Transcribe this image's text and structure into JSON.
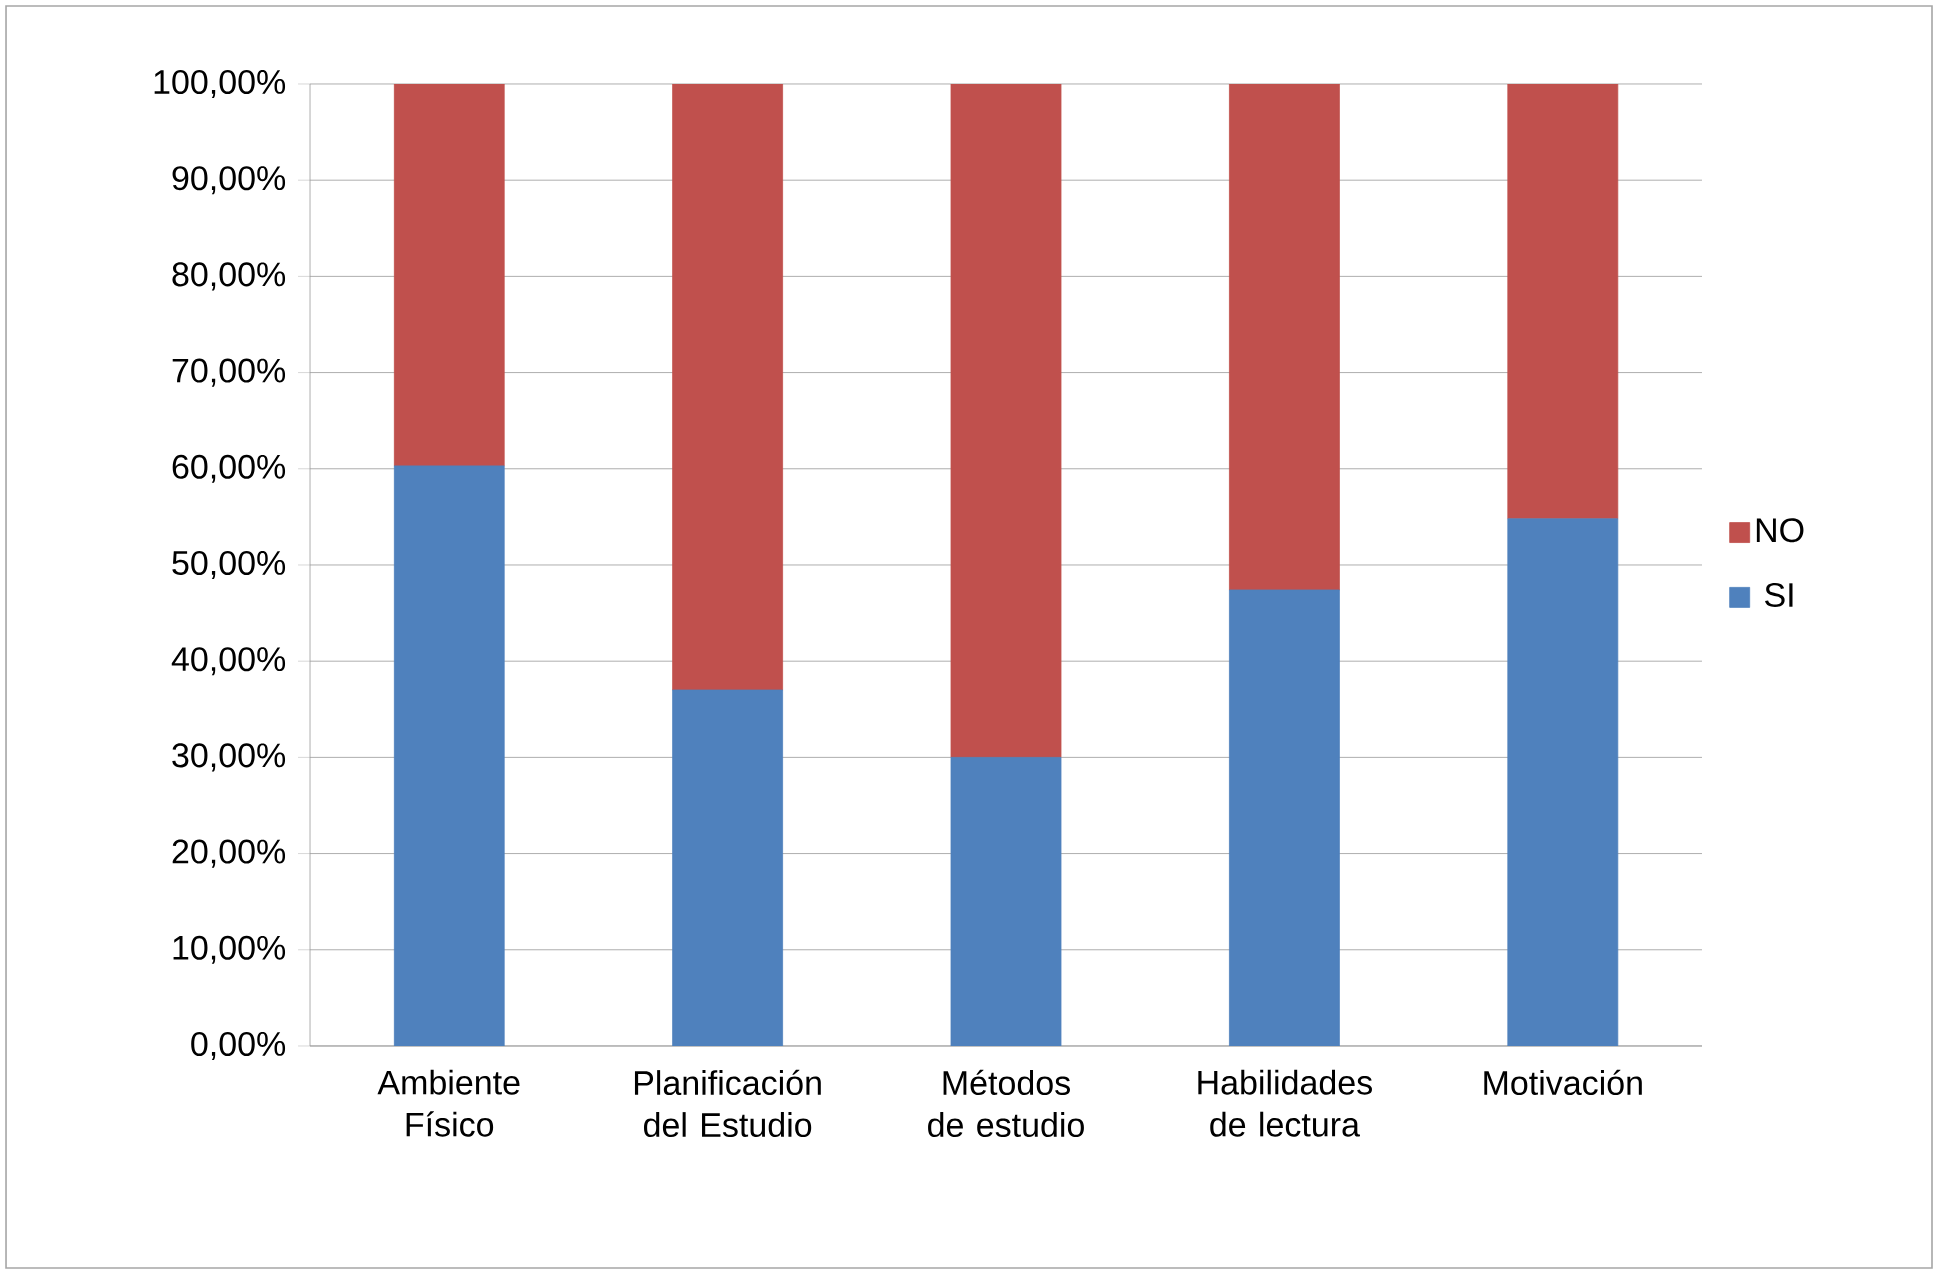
{
  "chart_data": {
    "type": "bar",
    "stacked": true,
    "categories": [
      "Ambiente Físico",
      "Planificación del Estudio",
      "Métodos de estudio",
      "Habilidades de lectura",
      "Motivación"
    ],
    "series": [
      {
        "name": "SI",
        "color": "#4f81bd",
        "values": [
          60.3,
          37.0,
          30.0,
          47.4,
          54.8
        ]
      },
      {
        "name": "NO",
        "color": "#c0504d",
        "values": [
          39.7,
          63.0,
          70.0,
          52.6,
          45.2
        ]
      }
    ],
    "ylim": [
      0,
      100
    ],
    "yticks": [
      {
        "value": 0,
        "label": "0,00%"
      },
      {
        "value": 10,
        "label": "10,00%"
      },
      {
        "value": 20,
        "label": "20,00%"
      },
      {
        "value": 30,
        "label": "30,00%"
      },
      {
        "value": 40,
        "label": "40,00%"
      },
      {
        "value": 50,
        "label": "50,00%"
      },
      {
        "value": 60,
        "label": "60,00%"
      },
      {
        "value": 70,
        "label": "70,00%"
      },
      {
        "value": 80,
        "label": "80,00%"
      },
      {
        "value": 90,
        "label": "90,00%"
      },
      {
        "value": 100,
        "label": "100,00%"
      }
    ],
    "grid": "y",
    "legend": "right"
  }
}
